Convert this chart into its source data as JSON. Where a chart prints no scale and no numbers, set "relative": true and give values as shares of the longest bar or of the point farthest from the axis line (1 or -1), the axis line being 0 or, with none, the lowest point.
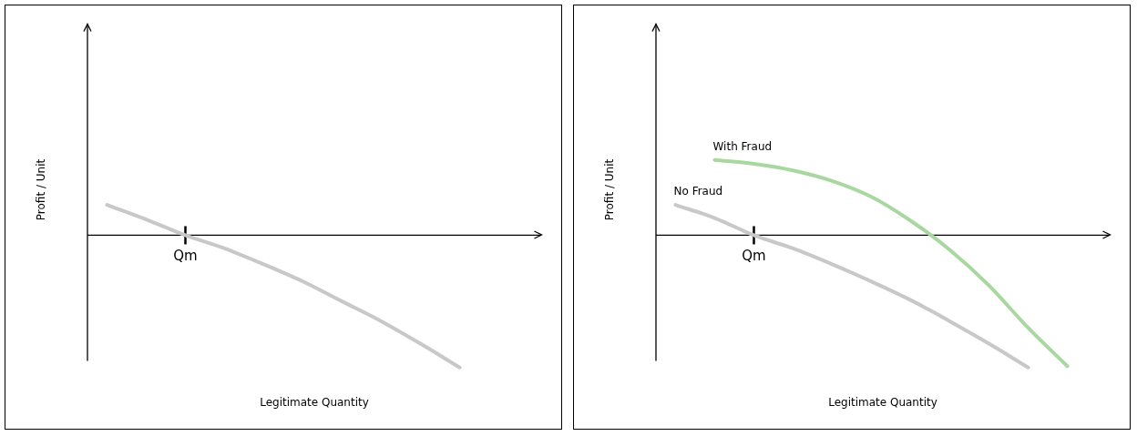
{
  "chart_data": [
    {
      "type": "line",
      "relative": true,
      "xlabel": "Legitimate Quantity",
      "ylabel": "Profit / Unit",
      "legend": false,
      "annotations": [
        "Qm"
      ],
      "categories": [
        null,
        null,
        null,
        null,
        null,
        null,
        null,
        null,
        null,
        null
      ],
      "series": [
        {
          "color": "#c8c8c8",
          "values": [
            0.23,
            0.12,
            0,
            -0.1,
            -0.22,
            -0.35,
            -0.5,
            -0.65,
            -0.82,
            -1
          ]
        }
      ]
    },
    {
      "type": "line",
      "relative": true,
      "xlabel": "Legitimate Quantity",
      "ylabel": "Profit / Unit",
      "legend": false,
      "annotations": [
        "Qm"
      ],
      "categories": [
        null,
        null,
        null,
        null,
        null,
        null,
        null,
        null,
        null,
        null,
        null
      ],
      "series": [
        {
          "name": "No Fraud",
          "color": "#c8c8c8",
          "values": [
            0.23,
            0.13,
            0,
            -0.1,
            -0.22,
            -0.35,
            -0.49,
            -0.65,
            -0.82,
            -1,
            null
          ]
        },
        {
          "name": "With Fraud",
          "color": "#a8d8a0",
          "values": [
            null,
            0.57,
            0.54,
            0.49,
            0.41,
            0.29,
            0.11,
            -0.11,
            -0.38,
            -0.7,
            -0.99
          ]
        }
      ]
    }
  ]
}
